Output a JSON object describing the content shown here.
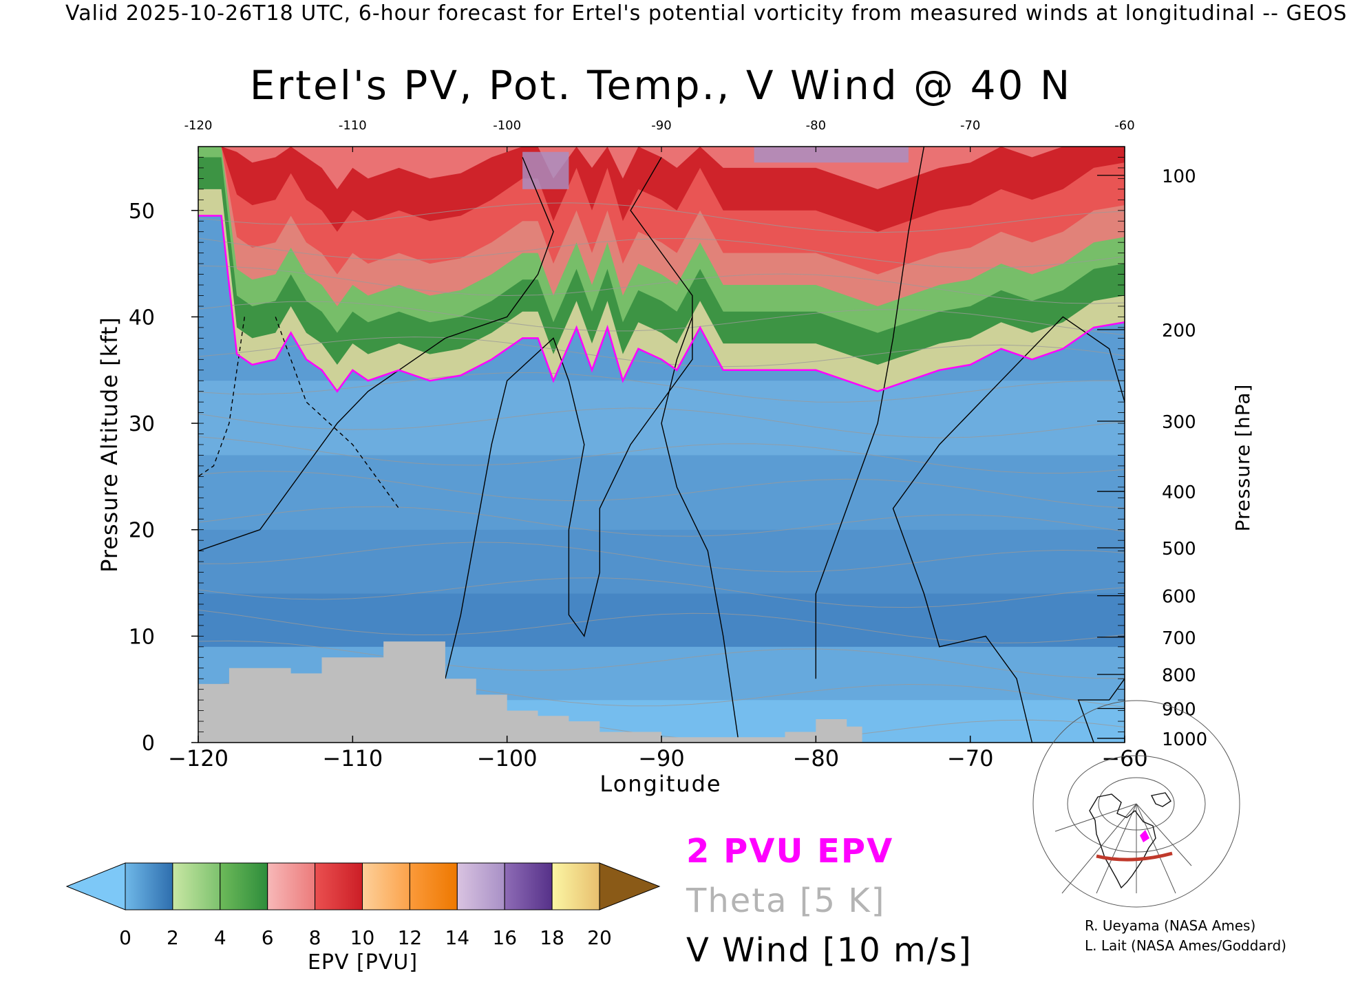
{
  "header": {
    "valid_line": "Valid 2025-10-26T18 UTC, 6-hour forecast for Ertel's potential vorticity from measured winds at longitudinal -- GEOS",
    "title": "Ertel's PV, Pot. Temp., V Wind @ 40 N"
  },
  "chart_data": {
    "type": "heatmap",
    "title": "Ertel's PV, Pot. Temp., V Wind @ 40 N",
    "xlabel": "Longitude",
    "ylabel_left": "Pressure Altitude [kft]",
    "ylabel_right": "Pressure [hPa]",
    "xlim": [
      -120,
      -60
    ],
    "ylim_kft": [
      0,
      56
    ],
    "x_ticks": [
      -120,
      -110,
      -100,
      -90,
      -80,
      -70,
      -60
    ],
    "x_tick_labels": [
      "−120",
      "−110",
      "−100",
      "−90",
      "−80",
      "−70",
      "−60"
    ],
    "top_tick_labels": [
      "-120",
      "-110",
      "-100",
      "-90",
      "-80",
      "-70",
      "-60"
    ],
    "y_ticks": [
      0,
      10,
      20,
      30,
      40,
      50
    ],
    "pressure_ticks": [
      {
        "hpa": "100",
        "kft": 53.3
      },
      {
        "hpa": "200",
        "kft": 38.8
      },
      {
        "hpa": "300",
        "kft": 30.2
      },
      {
        "hpa": "400",
        "kft": 23.6
      },
      {
        "hpa": "500",
        "kft": 18.3
      },
      {
        "hpa": "600",
        "kft": 13.8
      },
      {
        "hpa": "700",
        "kft": 9.9
      },
      {
        "hpa": "800",
        "kft": 6.4
      },
      {
        "hpa": "900",
        "kft": 3.2
      },
      {
        "hpa": "1000",
        "kft": 0.4
      }
    ],
    "tropopause_2pvu_kft": [
      [
        -120,
        49.5
      ],
      [
        -118.5,
        49.5
      ],
      [
        -117.5,
        36.5
      ],
      [
        -116.5,
        35.5
      ],
      [
        -115,
        36
      ],
      [
        -114,
        38.5
      ],
      [
        -113,
        36
      ],
      [
        -112,
        35
      ],
      [
        -111,
        33
      ],
      [
        -110,
        35
      ],
      [
        -109,
        34
      ],
      [
        -107,
        35
      ],
      [
        -105,
        34
      ],
      [
        -103,
        34.5
      ],
      [
        -101,
        36
      ],
      [
        -99,
        38
      ],
      [
        -98,
        38
      ],
      [
        -97,
        34
      ],
      [
        -95.5,
        39
      ],
      [
        -94.5,
        35
      ],
      [
        -93.5,
        39
      ],
      [
        -92.5,
        34
      ],
      [
        -91.5,
        37
      ],
      [
        -90,
        36
      ],
      [
        -89,
        35
      ],
      [
        -87.5,
        39
      ],
      [
        -86,
        35
      ],
      [
        -84,
        35
      ],
      [
        -80,
        35
      ],
      [
        -78,
        34
      ],
      [
        -76,
        33
      ],
      [
        -74,
        34
      ],
      [
        -72,
        35
      ],
      [
        -70,
        35.5
      ],
      [
        -68,
        37
      ],
      [
        -66,
        36
      ],
      [
        -64,
        37
      ],
      [
        -62,
        39
      ],
      [
        -60,
        39.5
      ]
    ],
    "epv_colorbar": {
      "label": "EPV [PVU]",
      "ticks": [
        "0",
        "2",
        "4",
        "6",
        "8",
        "10",
        "12",
        "14",
        "16",
        "18",
        "20"
      ],
      "bins": [
        {
          "from": 0,
          "to": 2,
          "colors": [
            "#6fb8e8",
            "#2e6eae"
          ]
        },
        {
          "from": 2,
          "to": 4,
          "colors": [
            "#c9e7a4",
            "#7dc26e"
          ]
        },
        {
          "from": 4,
          "to": 6,
          "colors": [
            "#6dba5a",
            "#2e8d3b"
          ]
        },
        {
          "from": 6,
          "to": 8,
          "colors": [
            "#f7b8b8",
            "#ec7b7b"
          ]
        },
        {
          "from": 8,
          "to": 10,
          "colors": [
            "#ea5050",
            "#cc1e26"
          ]
        },
        {
          "from": 10,
          "to": 12,
          "colors": [
            "#fdd09a",
            "#fba24a"
          ]
        },
        {
          "from": 12,
          "to": 14,
          "colors": [
            "#fb9a3a",
            "#ee7800"
          ]
        },
        {
          "from": 14,
          "to": 16,
          "colors": [
            "#d9c3e1",
            "#a890c6"
          ]
        },
        {
          "from": 16,
          "to": 18,
          "colors": [
            "#8e6cb6",
            "#563189"
          ]
        },
        {
          "from": 18,
          "to": 20,
          "colors": [
            "#fbf6a4",
            "#e8bf6e"
          ]
        }
      ],
      "under_color": "#7dc8f7",
      "over_color": "#8a5a17"
    },
    "legend": {
      "epv_contour": {
        "label": "2 PVU EPV",
        "color": "#ff00ff"
      },
      "theta_contour": {
        "label": "Theta [5 K]",
        "color": "#b4b4b4"
      },
      "vwind_contour": {
        "label": "V Wind [10 m/s]",
        "color": "#000000"
      }
    },
    "terrain_color": "#bebebe"
  },
  "credits": {
    "line1": "R. Ueyama (NASA Ames)",
    "line2": "L. Lait (NASA Ames/Goddard)"
  },
  "inset_map": {
    "section_color": "#c0392b",
    "marker_color": "#ff00ff"
  }
}
